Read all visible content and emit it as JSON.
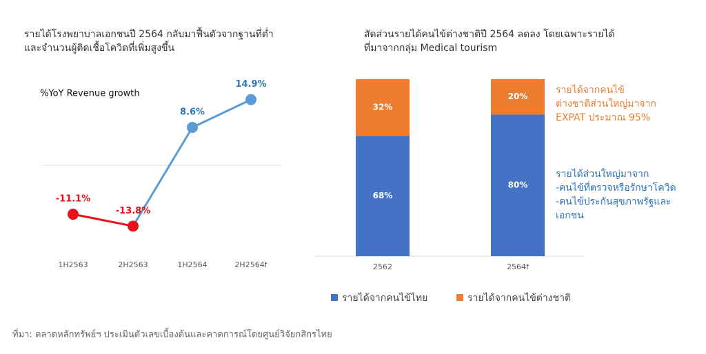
{
  "chart_data": [
    {
      "type": "line",
      "title": [
        "รายได้โรงพยาบาลเอกชนปี 2564 กลับมาฟื้นตัวจากฐานที่ต่ำ",
        "และจำนวนผู้ติดเชื้อโควิดที่เพิ่มสูงขึ้น"
      ],
      "subtitle": "%YoY Revenue growth",
      "categories": [
        "1H2563",
        "2H2563",
        "1H2564",
        "2H2564f"
      ],
      "values": [
        -11.1,
        -13.8,
        8.6,
        14.9
      ],
      "value_labels": [
        "-11.1%",
        "-13.8%",
        "8.6%",
        "14.9%"
      ],
      "colors": [
        "#e8101a",
        "#e8101a",
        "#5b9bd5",
        "#5b9bd5"
      ],
      "label_colors": [
        "#e8101a",
        "#e8101a",
        "#2e75b6",
        "#2e75b6"
      ],
      "ylim": [
        -20,
        20
      ],
      "zero_line": true
    },
    {
      "type": "stacked_bar",
      "title": [
        "สัดส่วนรายได้คนไข้ต่างชาติปี 2564 ลดลง โดยเฉพาะรายได้",
        "ที่มาจากกลุ่ม Medical tourism"
      ],
      "categories": [
        "2562",
        "2564f"
      ],
      "series": [
        {
          "name": "รายได้จากคนไข้ไทย",
          "color": "#4472c4",
          "values": [
            68,
            80
          ],
          "value_labels": [
            "68%",
            "80%"
          ]
        },
        {
          "name": "รายได้จากคนไข้ต่างชาติ",
          "color": "#ed7d31",
          "values": [
            32,
            20
          ],
          "value_labels": [
            "32%",
            "20%"
          ]
        }
      ],
      "ylim": [
        0,
        100
      ],
      "annotations": [
        {
          "color": "#ed7d31",
          "lines": [
            "รายได้จากคนไข้",
            "ต่างชาติส่วนใหญ่มาจาก",
            "EXPAT ประมาณ 95%"
          ]
        },
        {
          "color": "#2e75b6",
          "lines": [
            "รายได้ส่วนใหญ่มาจาก",
            "-คนไข้ที่ตรวจหรือรักษาโควิด",
            "-คนไข้ประกันสุขภาพรัฐและ",
            "เอกชน"
          ]
        }
      ]
    }
  ],
  "source": "ที่มา: ตลาดหลักทรัพย์ฯ ประเมินตัวเลขเบื้องต้นและคาดการณ์โดยศูนย์วิจัยกสิกรไทย"
}
